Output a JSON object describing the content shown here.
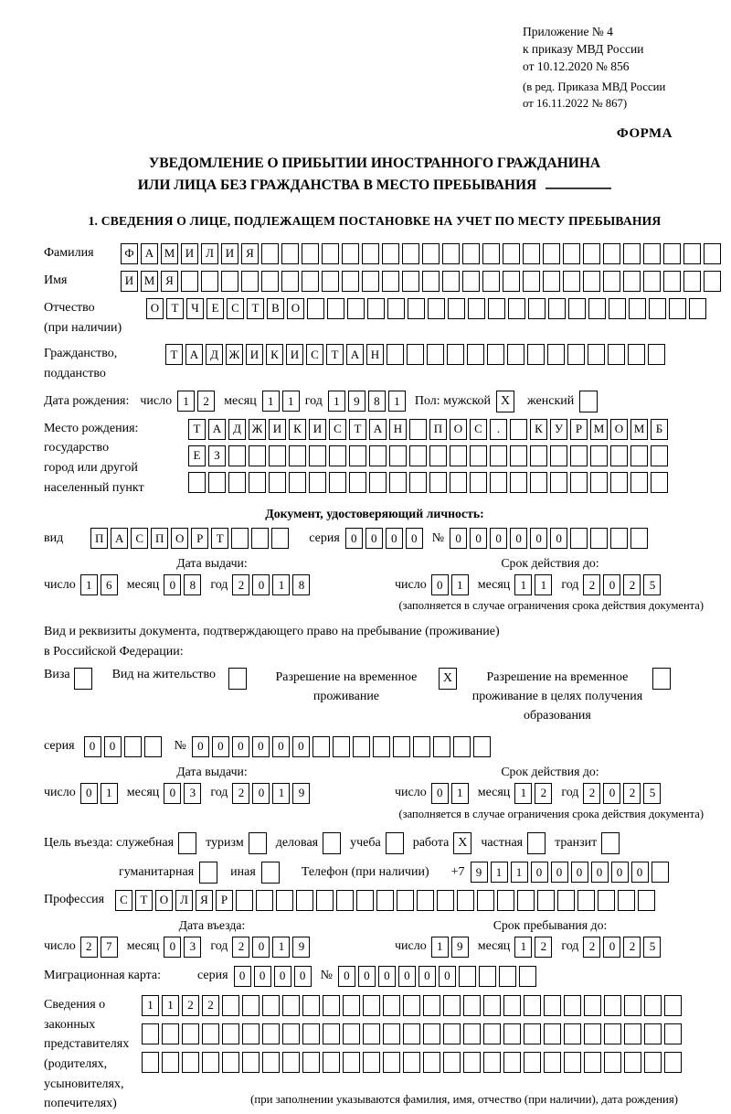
{
  "header": {
    "appendix_lines": [
      "Приложение № 4",
      "к приказу МВД России",
      "от 10.12.2020 № 856"
    ],
    "amendment_lines": [
      "(в ред. Приказа МВД России",
      "от 16.11.2022 № 867)"
    ],
    "form_label": "ФОРМА"
  },
  "title": {
    "line1": "УВЕДОМЛЕНИЕ О ПРИБЫТИИ ИНОСТРАННОГО ГРАЖДАНИНА",
    "line2": "ИЛИ ЛИЦА БЕЗ ГРАЖДАНСТВА В МЕСТО ПРЕБЫВАНИЯ"
  },
  "section1_heading": "1. СВЕДЕНИЯ О ЛИЦЕ, ПОДЛЕЖАЩЕМ ПОСТАНОВКЕ НА УЧЕТ ПО МЕСТУ ПРЕБЫВАНИЯ",
  "labels": {
    "day": "число",
    "month": "месяц",
    "year": "год",
    "series": "серия",
    "number": "№"
  },
  "person": {
    "surname_label": "Фамилия",
    "surname": {
      "value": "ФАМИЛИЯ",
      "cells": 30
    },
    "name_label": "Имя",
    "name": {
      "value": "ИМЯ",
      "cells": 30
    },
    "patronymic_label1": "Отчество",
    "patronymic_label2": "(при наличии)",
    "patronymic": {
      "value": "ОТЧЕСТВО",
      "cells": 28
    },
    "citizenship_label1": "Гражданство,",
    "citizenship_label2": "подданство",
    "citizenship": {
      "value": "ТАДЖИКИСТАН",
      "cells": 25
    },
    "birth_date_label": "Дата рождения:",
    "birth_day": {
      "value": "12",
      "cells": 2
    },
    "birth_month": {
      "value": "11",
      "cells": 2
    },
    "birth_year": {
      "value": "1981",
      "cells": 4
    },
    "sex_label": "Пол: мужской",
    "sex_male_checked": "X",
    "sex_female_label": "женский",
    "sex_female_checked": "",
    "birth_place_label1": "Место рождения:",
    "birth_place_label2": "государство",
    "birth_place_label3": "город или другой",
    "birth_place_label4": "населенный пункт",
    "birth_place_row1": {
      "value": "ТАДЖИКИСТАН ПОС. КУРМОМБ",
      "cells": 24
    },
    "birth_place_row2": {
      "value": "ЕЗ",
      "cells": 24
    },
    "birth_place_row3": {
      "value": "",
      "cells": 24
    }
  },
  "identity_doc": {
    "heading": "Документ, удостоверяющий личность:",
    "kind_label": "вид",
    "kind": {
      "value": "ПАСПОРТ",
      "cells": 10
    },
    "series": {
      "value": "0000",
      "cells": 4
    },
    "number": {
      "value": "000000",
      "cells": 10
    },
    "issue_caption": "Дата выдачи:",
    "issue_day": {
      "value": "16",
      "cells": 2
    },
    "issue_month": {
      "value": "08",
      "cells": 2
    },
    "issue_year": {
      "value": "2018",
      "cells": 4
    },
    "expiry_caption": "Срок действия до:",
    "expiry_day": {
      "value": "01",
      "cells": 2
    },
    "expiry_month": {
      "value": "11",
      "cells": 2
    },
    "expiry_year": {
      "value": "2025",
      "cells": 4
    },
    "note": "(заполняется в случае ограничения срока действия документа)"
  },
  "residence_doc": {
    "intro_line1": "Вид и реквизиты документа, подтверждающего право на пребывание (проживание)",
    "intro_line2": "в Российской Федерации:",
    "options": [
      {
        "label": "Виза",
        "checked": ""
      },
      {
        "label": "Вид на жительство",
        "checked": ""
      },
      {
        "label": "Разрешение на временное проживание",
        "checked": "X"
      },
      {
        "label": "Разрешение на временное проживание в целях получения образования",
        "checked": ""
      }
    ],
    "series": {
      "value": "00",
      "cells": 4
    },
    "number": {
      "value": "000000",
      "cells": 15
    },
    "issue_caption": "Дата выдачи:",
    "issue_day": {
      "value": "01",
      "cells": 2
    },
    "issue_month": {
      "value": "03",
      "cells": 2
    },
    "issue_year": {
      "value": "2019",
      "cells": 4
    },
    "expiry_caption": "Срок действия до:",
    "expiry_day": {
      "value": "01",
      "cells": 2
    },
    "expiry_month": {
      "value": "12",
      "cells": 2
    },
    "expiry_year": {
      "value": "2025",
      "cells": 4
    },
    "note": "(заполняется в случае ограничения срока действия документа)"
  },
  "visit": {
    "purpose_label": "Цель въезда: служебная",
    "purposes": [
      {
        "label": "туризм",
        "checked": ""
      },
      {
        "label": "деловая",
        "checked": ""
      },
      {
        "label": "учеба",
        "checked": ""
      },
      {
        "label": "работа",
        "checked": "X"
      },
      {
        "label": "частная",
        "checked": ""
      },
      {
        "label": "транзит",
        "checked": ""
      }
    ],
    "business_checked": "",
    "humanitarian_label": "гуманитарная",
    "humanitarian_checked": "",
    "other_label": "иная",
    "other_checked": "",
    "phone_label": "Телефон (при наличии)",
    "phone_prefix": "+7",
    "phone": {
      "value": "911000000",
      "cells": 10
    },
    "profession_label": "Профессия",
    "profession": {
      "value": "СТОЛЯР",
      "cells": 27
    },
    "entry_caption": "Дата въезда:",
    "entry_day": {
      "value": "27",
      "cells": 2
    },
    "entry_month": {
      "value": "03",
      "cells": 2
    },
    "entry_year": {
      "value": "2019",
      "cells": 4
    },
    "stay_caption": "Срок пребывания до:",
    "stay_day": {
      "value": "19",
      "cells": 2
    },
    "stay_month": {
      "value": "12",
      "cells": 2
    },
    "stay_year": {
      "value": "2025",
      "cells": 4
    },
    "migration_card_label": "Миграционная карта:",
    "migration_series": {
      "value": "0000",
      "cells": 4
    },
    "migration_number": {
      "value": "000000",
      "cells": 10
    }
  },
  "representatives": {
    "label_line1": "Сведения о",
    "label_line2": "законных",
    "label_line3": "представителях",
    "label_line4": "(родителях,",
    "label_line5": "усыновителях,",
    "label_line6": "попечителях)",
    "row1": {
      "value": "1122",
      "cells": 27
    },
    "row2": {
      "value": "",
      "cells": 27
    },
    "row3": {
      "value": "",
      "cells": 27
    },
    "note": "(при заполнении указываются фамилия, имя, отчество (при наличии), дата рождения)"
  }
}
